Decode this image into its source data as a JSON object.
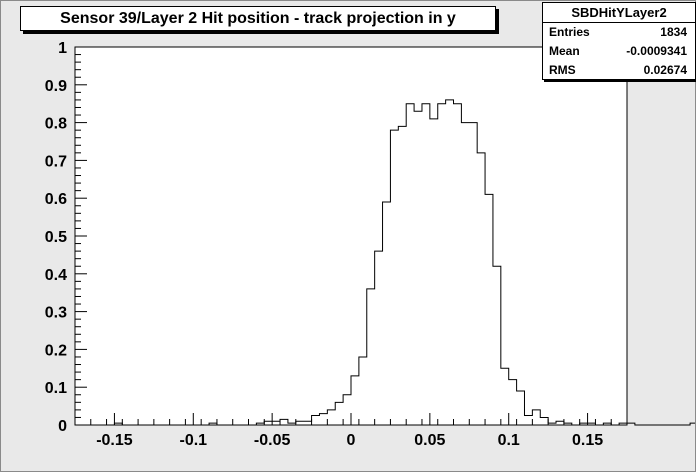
{
  "title": "Sensor 39/Layer 2 Hit position - track projection in y",
  "stats": {
    "name": "SBDHitYLayer2",
    "rows": [
      {
        "label": "Entries",
        "value": "1834"
      },
      {
        "label": "Mean",
        "value": "-0.0009341"
      },
      {
        "label": "RMS",
        "value": "0.02674"
      }
    ]
  },
  "chart_data": {
    "type": "histogram",
    "xlim": [
      -0.175,
      0.175
    ],
    "ylim": [
      0,
      1
    ],
    "x_ticks": [
      -0.15,
      -0.1,
      -0.05,
      0,
      0.05,
      0.1,
      0.15
    ],
    "x_tick_labels": [
      "-0.15",
      "-0.1",
      "-0.05",
      "0",
      "0.05",
      "0.1",
      "0.15"
    ],
    "y_ticks": [
      0,
      0.1,
      0.2,
      0.3,
      0.4,
      0.5,
      0.6,
      0.7,
      0.8,
      0.9,
      1
    ],
    "y_tick_labels": [
      "0",
      "0.1",
      "0.2",
      "0.3",
      "0.4",
      "0.5",
      "0.6",
      "0.7",
      "0.8",
      "0.9",
      "1"
    ],
    "bin_width": 0.005,
    "values": [
      0,
      0,
      0,
      0,
      0,
      0.005,
      0,
      0,
      0,
      0,
      0,
      0,
      0,
      0,
      0,
      0,
      0,
      0.005,
      0,
      0,
      0,
      0,
      0,
      0.005,
      0.01,
      0.01,
      0.015,
      0.005,
      0.01,
      0.01,
      0.025,
      0.03,
      0.04,
      0.06,
      0.08,
      0.13,
      0.18,
      0.36,
      0.46,
      0.59,
      0.78,
      0.79,
      0.85,
      0.83,
      0.85,
      0.81,
      0.85,
      0.86,
      0.85,
      0.8,
      0.8,
      0.72,
      0.61,
      0.42,
      0.15,
      0.12,
      0.09,
      0.025,
      0.04,
      0.02,
      0.005,
      0.01,
      0.005,
      0,
      0.005,
      0.005,
      0,
      0.005,
      0,
      0.005,
      0.005,
      0,
      0,
      0,
      0,
      0,
      0,
      0,
      0.005,
      0,
      0,
      0,
      0,
      0,
      0,
      0,
      0,
      0.005,
      0,
      0
    ]
  }
}
